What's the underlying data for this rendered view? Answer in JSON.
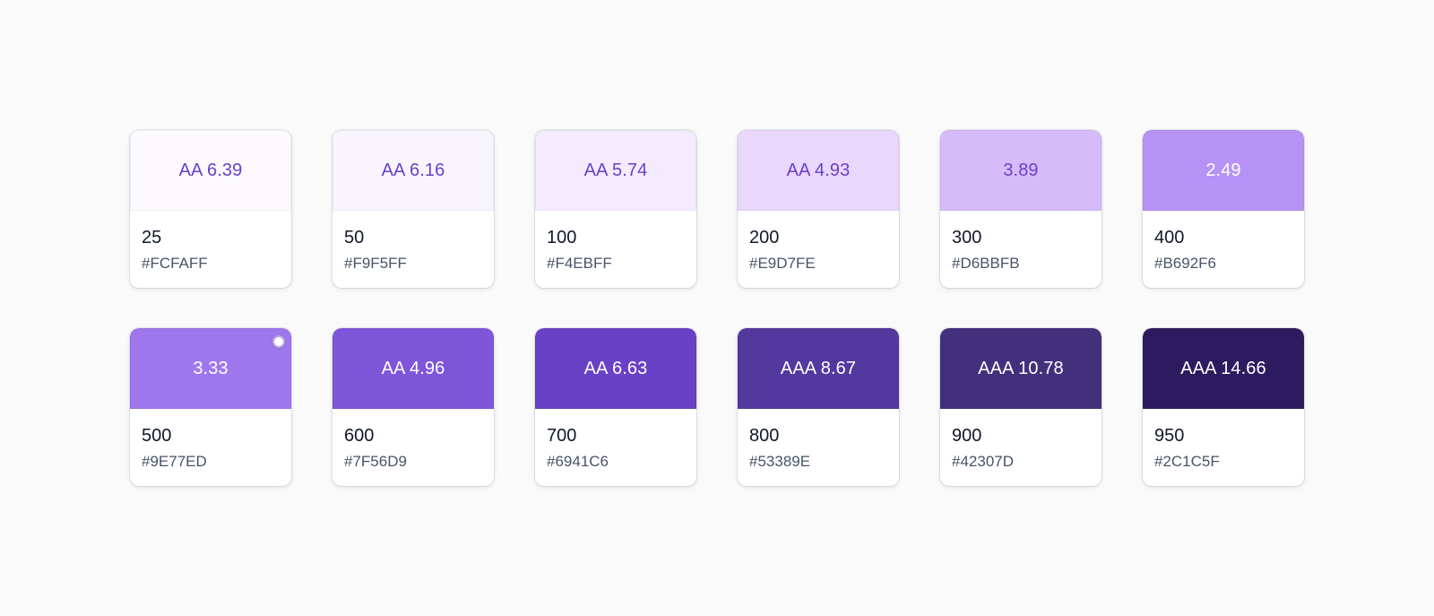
{
  "palette": {
    "swatches": [
      {
        "contrast": "AA 6.39",
        "step": "25",
        "hex": "#FCFAFF",
        "bg": "#FCFAFF",
        "fg": "#6941C6",
        "selected": false
      },
      {
        "contrast": "AA 6.16",
        "step": "50",
        "hex": "#F9F5FF",
        "bg": "#F9F5FF",
        "fg": "#6941C6",
        "selected": false
      },
      {
        "contrast": "AA 5.74",
        "step": "100",
        "hex": "#F4EBFF",
        "bg": "#F4EBFF",
        "fg": "#6941C6",
        "selected": false
      },
      {
        "contrast": "AA 4.93",
        "step": "200",
        "hex": "#E9D7FE",
        "bg": "#E9D7FE",
        "fg": "#6941C6",
        "selected": false
      },
      {
        "contrast": "3.89",
        "step": "300",
        "hex": "#D6BBFB",
        "bg": "#D6BBFB",
        "fg": "#6941C6",
        "selected": false
      },
      {
        "contrast": "2.49",
        "step": "400",
        "hex": "#B692F6",
        "bg": "#B692F6",
        "fg": "#FFFFFF",
        "selected": false
      },
      {
        "contrast": "3.33",
        "step": "500",
        "hex": "#9E77ED",
        "bg": "#9E77ED",
        "fg": "#FFFFFF",
        "selected": true
      },
      {
        "contrast": "AA 4.96",
        "step": "600",
        "hex": "#7F56D9",
        "bg": "#7F56D9",
        "fg": "#FFFFFF",
        "selected": false
      },
      {
        "contrast": "AA 6.63",
        "step": "700",
        "hex": "#6941C6",
        "bg": "#6941C6",
        "fg": "#FFFFFF",
        "selected": false
      },
      {
        "contrast": "AAA 8.67",
        "step": "800",
        "hex": "#53389E",
        "bg": "#53389E",
        "fg": "#FFFFFF",
        "selected": false
      },
      {
        "contrast": "AAA 10.78",
        "step": "900",
        "hex": "#42307D",
        "bg": "#42307D",
        "fg": "#FFFFFF",
        "selected": false
      },
      {
        "contrast": "AAA 14.66",
        "step": "950",
        "hex": "#2C1C5F",
        "bg": "#2C1C5F",
        "fg": "#FFFFFF",
        "selected": false
      }
    ]
  }
}
